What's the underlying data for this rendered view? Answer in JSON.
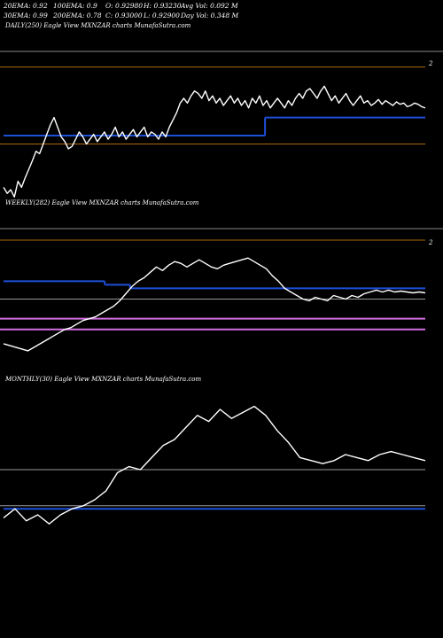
{
  "header": {
    "row1": [
      {
        "text": "20EMA: 0.92"
      },
      {
        "text": "100EMA: 0.9"
      },
      {
        "text": "O: 0.92980"
      },
      {
        "text": "H: 0.93230"
      },
      {
        "text": "Avg Vol: 0.092  M"
      }
    ],
    "row2": [
      {
        "text": "30EMA: 0.99"
      },
      {
        "text": "200EMA: 0.78"
      },
      {
        "text": "C: 0.93000"
      },
      {
        "text": "L: 0.92900"
      },
      {
        "text": "Day Vol: 0.348  M"
      }
    ]
  },
  "colors": {
    "background": "#000000",
    "price_line": "#ffffff",
    "ema_blue": "#1e4fd8",
    "level_gray": "#9a9a9a",
    "level_orange": "#b06a10",
    "band_pink": "#d070e0",
    "edge_gray": "#888888"
  },
  "chart_data": [
    {
      "type": "line",
      "title": "DAILY(250) Eagle  View  MXNZAR charts MunafaSutra.com",
      "edge_label": "2",
      "series": [
        {
          "values": [
            0.3,
            0.25,
            0.28,
            0.22,
            0.35,
            0.3,
            0.38,
            0.45,
            0.52,
            0.6,
            0.58,
            0.66,
            0.74,
            0.82,
            0.88,
            0.8,
            0.72,
            0.68,
            0.62,
            0.64,
            0.7,
            0.76,
            0.72,
            0.66,
            0.7,
            0.74,
            0.68,
            0.72,
            0.76,
            0.7,
            0.74,
            0.8,
            0.72,
            0.76,
            0.7,
            0.74,
            0.78,
            0.72,
            0.76,
            0.8,
            0.72,
            0.76,
            0.74,
            0.7,
            0.76,
            0.72,
            0.8,
            0.86,
            0.92,
            1.0,
            1.04,
            1.0,
            1.06,
            1.1,
            1.08,
            1.04,
            1.1,
            1.02,
            1.06,
            1.0,
            1.04,
            0.98,
            1.02,
            1.06,
            1.0,
            1.04,
            0.98,
            1.02,
            0.96,
            1.04,
            1.0,
            1.06,
            0.98,
            1.02,
            0.96,
            1.0,
            1.04,
            1.0,
            0.96,
            1.02,
            0.98,
            1.04,
            1.08,
            1.04,
            1.1,
            1.12,
            1.08,
            1.04,
            1.1,
            1.14,
            1.08,
            1.02,
            1.06,
            1.0,
            1.04,
            1.08,
            1.02,
            0.98,
            1.02,
            1.06,
            1.0,
            1.02,
            0.98,
            1.0,
            1.03,
            0.99,
            1.02,
            1.0,
            0.98,
            1.01,
            0.99,
            1.0,
            0.97,
            0.98,
            1.0,
            0.99,
            0.97,
            0.96
          ]
        }
      ],
      "levels": [
        {
          "color": "level_orange",
          "value": 1.3
        },
        {
          "color": "level_orange",
          "value": 0.66
        }
      ],
      "ema_steps": [
        {
          "x_from": 0,
          "x_to": 0.62,
          "value": 0.73
        },
        {
          "x_from": 0.62,
          "x_to": 1.0,
          "value": 0.88
        }
      ],
      "ylim": [
        0.2,
        1.4
      ]
    },
    {
      "type": "line",
      "title": "WEEKLY(282) Eagle  View  MXNZAR charts MunafaSutra.com",
      "edge_label": "2",
      "series": [
        {
          "values": [
            0.22,
            0.2,
            0.18,
            0.16,
            0.14,
            0.18,
            0.22,
            0.26,
            0.3,
            0.34,
            0.38,
            0.4,
            0.44,
            0.48,
            0.5,
            0.52,
            0.56,
            0.6,
            0.64,
            0.7,
            0.78,
            0.86,
            0.92,
            0.96,
            1.02,
            1.08,
            1.04,
            1.1,
            1.14,
            1.12,
            1.08,
            1.12,
            1.16,
            1.12,
            1.08,
            1.06,
            1.1,
            1.12,
            1.14,
            1.16,
            1.18,
            1.14,
            1.1,
            1.06,
            0.98,
            0.92,
            0.84,
            0.8,
            0.76,
            0.72,
            0.7,
            0.74,
            0.72,
            0.7,
            0.76,
            0.74,
            0.72,
            0.76,
            0.74,
            0.78,
            0.8,
            0.82,
            0.8,
            0.82,
            0.8,
            0.81,
            0.8,
            0.79,
            0.8,
            0.79
          ]
        }
      ],
      "levels": [
        {
          "color": "level_orange",
          "value": 1.38
        },
        {
          "color": "level_gray",
          "value": 0.72
        },
        {
          "color": "band_pink",
          "value": 0.5
        },
        {
          "color": "band_pink",
          "value": 0.38
        }
      ],
      "ema_steps": [
        {
          "x_from": 0,
          "x_to": 0.24,
          "value": 0.92
        },
        {
          "x_from": 0.24,
          "x_to": 0.3,
          "value": 0.88
        },
        {
          "x_from": 0.3,
          "x_to": 1.0,
          "value": 0.84
        }
      ],
      "ylim": [
        0.05,
        1.45
      ]
    },
    {
      "type": "line",
      "title": "MONTHLY(30) Eagle  View  MXNZAR charts MunafaSutra.com",
      "edge_label": "",
      "series": [
        {
          "values": [
            0.18,
            0.24,
            0.16,
            0.2,
            0.14,
            0.2,
            0.24,
            0.26,
            0.3,
            0.36,
            0.48,
            0.52,
            0.5,
            0.58,
            0.66,
            0.7,
            0.78,
            0.86,
            0.82,
            0.9,
            0.84,
            0.88,
            0.92,
            0.86,
            0.76,
            0.68,
            0.58,
            0.56,
            0.54,
            0.56,
            0.6,
            0.58,
            0.56,
            0.6,
            0.62,
            0.6,
            0.58,
            0.56
          ]
        }
      ],
      "levels": [
        {
          "color": "level_gray",
          "value": 0.5
        },
        {
          "color": "level_gray",
          "value": 0.26
        }
      ],
      "ema_steps": [
        {
          "x_from": 0,
          "x_to": 1.0,
          "value": 0.24
        }
      ],
      "ylim": [
        0.0,
        1.0
      ]
    }
  ]
}
